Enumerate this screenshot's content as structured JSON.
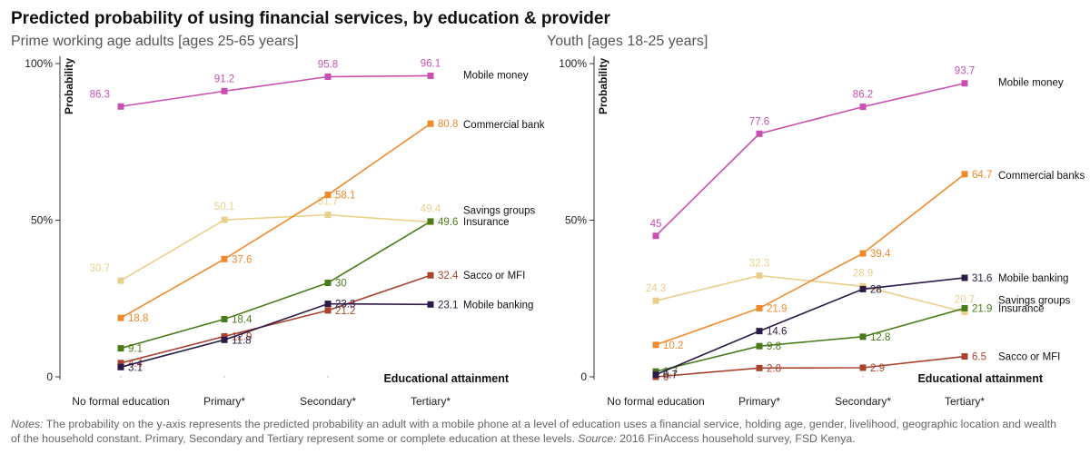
{
  "title": "Predicted probability of using financial services, by education & provider",
  "notes": {
    "label": "Notes:",
    "text": " The probability on the y-axis represents the predicted probability an adult with a mobile phone at a level of education uses a financial service, holding age, gender, livelihood, geographic location and wealth of the household constant. Primary, Secondary and Tertiary represent some or complete education at these levels. ",
    "source_label": "Source:",
    "source_text": " 2016 FinAccess household survey, FSD Kenya."
  },
  "colors": {
    "mobile_money": "#c94fb0",
    "commercial_bank": "#ee8a2c",
    "savings_groups": "#e8d08a",
    "insurance": "#4a7a1a",
    "sacco_mfi": "#a8432f",
    "mobile_banking": "#2b1a45"
  },
  "chart_data": [
    {
      "type": "line",
      "subtitle": "Prime working age adults [ages 25-65 years]",
      "categories": [
        "No formal education",
        "Primary*",
        "Secondary*",
        "Tertiary*"
      ],
      "ylabel": "Probability",
      "xlabel": "Educational attainment",
      "ylim": [
        0,
        100
      ],
      "yticks": [
        "0",
        "50%",
        "100%"
      ],
      "series": [
        {
          "name": "Mobile money",
          "values": [
            86.3,
            91.2,
            95.8,
            96.1
          ],
          "labels": [
            "86.3",
            "91.2",
            "95.8",
            "96.1"
          ],
          "color": "mobile_money"
        },
        {
          "name": "Commercial bank",
          "values": [
            18.8,
            37.6,
            58.1,
            80.8
          ],
          "labels": [
            "18.8",
            "37.6",
            "58.1",
            "80.8"
          ],
          "color": "commercial_bank"
        },
        {
          "name": "Savings groups",
          "values": [
            30.7,
            50.1,
            51.7,
            49.4
          ],
          "labels": [
            "30.7",
            "50.1",
            "51.7",
            "49.4"
          ],
          "color": "savings_groups"
        },
        {
          "name": "Insurance",
          "values": [
            9.1,
            18.4,
            30,
            49.6
          ],
          "labels": [
            "9.1",
            "18.4",
            "30",
            "49.6"
          ],
          "color": "insurance"
        },
        {
          "name": "Sacco or MFI",
          "values": [
            4.4,
            12.9,
            21.2,
            32.4
          ],
          "labels": [
            "4.4",
            "12.9",
            "21.2",
            "32.4"
          ],
          "color": "sacco_mfi"
        },
        {
          "name": "Mobile banking",
          "values": [
            3.1,
            11.8,
            23.3,
            23.1
          ],
          "labels": [
            "3.1",
            "11.8",
            "23.3",
            "23.1"
          ],
          "color": "mobile_banking"
        }
      ]
    },
    {
      "type": "line",
      "subtitle": "Youth [ages 18-25 years]",
      "categories": [
        "No formal education",
        "Primary*",
        "Secondary*",
        "Tertiary*"
      ],
      "ylabel": "Probability",
      "xlabel": "Educational attainment",
      "ylim": [
        0,
        100
      ],
      "yticks": [
        "0",
        "50%",
        "100%"
      ],
      "series": [
        {
          "name": "Mobile money",
          "values": [
            45,
            77.6,
            86.2,
            93.7
          ],
          "labels": [
            "45",
            "77.6",
            "86.2",
            "93.7"
          ],
          "color": "mobile_money"
        },
        {
          "name": "Commercial banks",
          "values": [
            10.2,
            21.9,
            39.4,
            64.7
          ],
          "labels": [
            "10.2",
            "21.9",
            "39.4",
            "64.7"
          ],
          "color": "commercial_bank"
        },
        {
          "name": "Savings groups",
          "values": [
            24.3,
            32.3,
            28.9,
            20.7
          ],
          "labels": [
            "24.3",
            "32.3",
            "28.9",
            "20.7"
          ],
          "color": "savings_groups"
        },
        {
          "name": "Insurance",
          "values": [
            1.7,
            9.8,
            12.8,
            21.9
          ],
          "labels": [
            "1.7",
            "9.8",
            "12.8",
            "21.9"
          ],
          "color": "insurance"
        },
        {
          "name": "Sacco or MFI",
          "values": [
            0,
            2.8,
            2.9,
            6.5
          ],
          "labels": [
            "0",
            "2.8",
            "2.9",
            "6.5"
          ],
          "color": "sacco_mfi"
        },
        {
          "name": "Mobile banking",
          "values": [
            0.7,
            14.6,
            28,
            31.6
          ],
          "labels": [
            "0.7",
            "14.6",
            "28",
            "31.6"
          ],
          "color": "mobile_banking"
        }
      ]
    }
  ]
}
